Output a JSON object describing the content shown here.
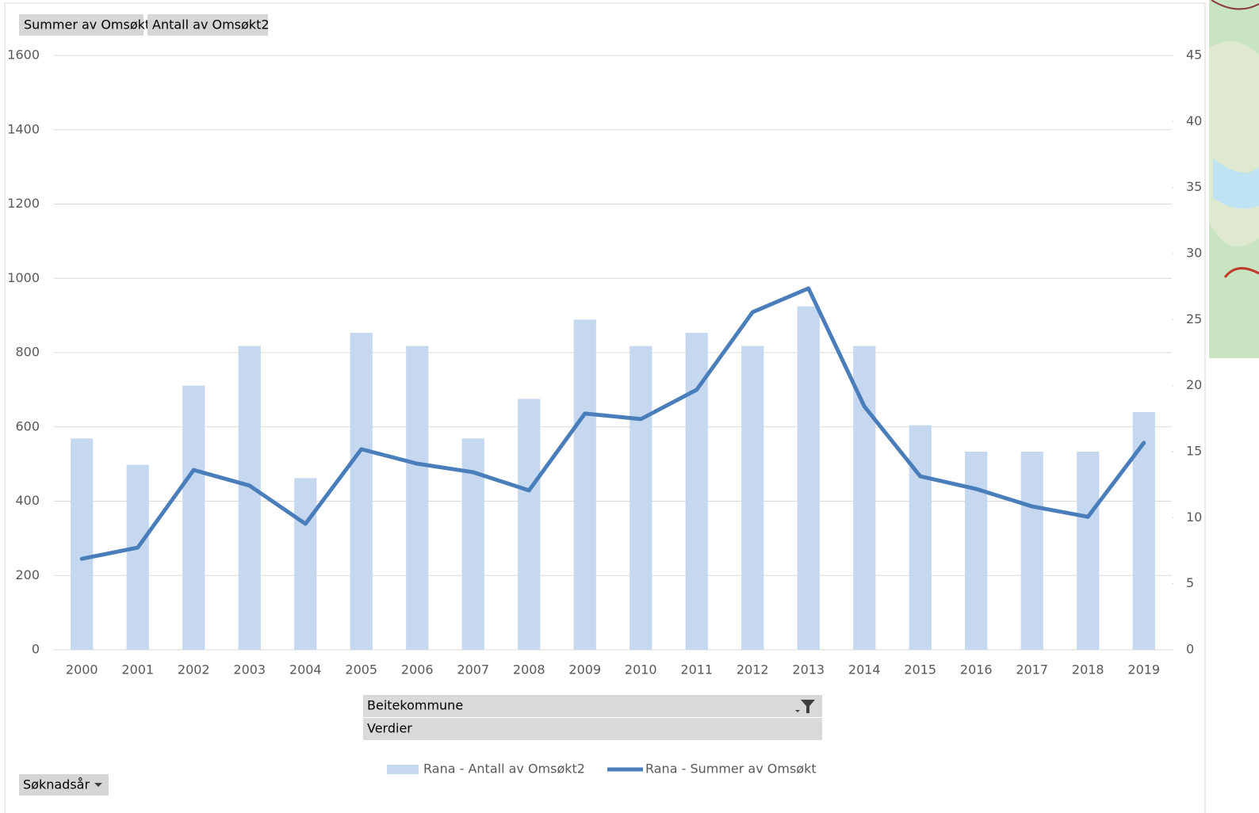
{
  "chart_data": {
    "type": "combo",
    "categories": [
      "2000",
      "2001",
      "2002",
      "2003",
      "2004",
      "2005",
      "2006",
      "2007",
      "2008",
      "2009",
      "2010",
      "2011",
      "2012",
      "2013",
      "2014",
      "2015",
      "2016",
      "2017",
      "2018",
      "2019"
    ],
    "series": [
      {
        "name": "Rana - Antall av Omsøkt2",
        "type": "bar",
        "axis": "y2",
        "color": "#c5d8f0",
        "values": [
          16,
          14,
          20,
          23,
          13,
          24,
          23,
          16,
          19,
          25,
          23,
          24,
          23,
          26,
          23,
          17,
          15,
          15,
          15,
          18
        ]
      },
      {
        "name": "Rana - Summer av Omsøkt",
        "type": "line",
        "axis": "y",
        "color": "#4a7ebb",
        "values": [
          245,
          275,
          484,
          442,
          339,
          540,
          501,
          478,
          429,
          636,
          621,
          700,
          909,
          973,
          655,
          467,
          433,
          386,
          358,
          557
        ]
      }
    ],
    "ylim": [
      0,
      1600
    ],
    "yticks": [
      0,
      200,
      400,
      600,
      800,
      1000,
      1200,
      1400,
      1600
    ],
    "y2lim": [
      0,
      45
    ],
    "y2ticks": [
      0,
      5,
      10,
      15,
      20,
      25,
      30,
      35,
      40,
      45
    ],
    "grid": true,
    "legend": "bottom"
  },
  "pivot_buttons": {
    "values": [
      "Summer av Omsøkt",
      "Antall av Omsøkt2"
    ],
    "filter": "Beitekommune",
    "columns": "Verdier",
    "axis": "Søknadsår"
  }
}
